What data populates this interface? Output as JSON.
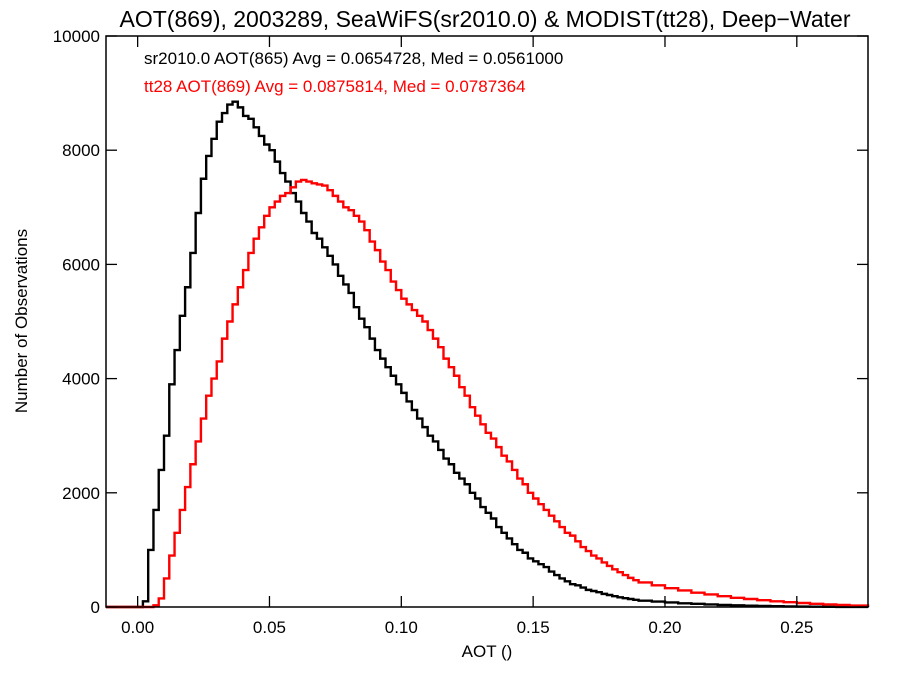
{
  "chart_data": {
    "type": "histogram",
    "title": "AOT(869), 2003289, SeaWiFS(sr2010.0) & MODIST(tt28), Deep−Water",
    "xlabel": "AOT ()",
    "ylabel": "Number of Observations",
    "xlim": [
      -0.012,
      0.277
    ],
    "ylim": [
      0,
      10000
    ],
    "x_ticks": [
      0.0,
      0.05,
      0.1,
      0.15,
      0.2,
      0.25
    ],
    "x_tick_labels": [
      "0.00",
      "0.05",
      "0.10",
      "0.15",
      "0.20",
      "0.25"
    ],
    "y_ticks": [
      0,
      2000,
      4000,
      6000,
      8000,
      10000
    ],
    "y_tick_labels": [
      "0",
      "2000",
      "4000",
      "6000",
      "8000",
      "10000"
    ],
    "grid": false,
    "series": [
      {
        "name": "sr2010.0 AOT(865)",
        "color": "#000000",
        "annotation": "sr2010.0 AOT(865) Avg = 0.0654728, Med = 0.0561000",
        "points": [
          [
            -0.012,
            0
          ],
          [
            0.0,
            0
          ],
          [
            0.002,
            100
          ],
          [
            0.004,
            1000
          ],
          [
            0.006,
            1700
          ],
          [
            0.008,
            2400
          ],
          [
            0.01,
            3000
          ],
          [
            0.012,
            3900
          ],
          [
            0.014,
            4500
          ],
          [
            0.016,
            5100
          ],
          [
            0.018,
            5600
          ],
          [
            0.02,
            6200
          ],
          [
            0.022,
            6900
          ],
          [
            0.024,
            7500
          ],
          [
            0.026,
            7900
          ],
          [
            0.028,
            8200
          ],
          [
            0.03,
            8500
          ],
          [
            0.032,
            8650
          ],
          [
            0.034,
            8800
          ],
          [
            0.036,
            8850
          ],
          [
            0.038,
            8750
          ],
          [
            0.04,
            8600
          ],
          [
            0.042,
            8550
          ],
          [
            0.044,
            8400
          ],
          [
            0.046,
            8250
          ],
          [
            0.048,
            8100
          ],
          [
            0.05,
            8000
          ],
          [
            0.052,
            7800
          ],
          [
            0.054,
            7600
          ],
          [
            0.056,
            7450
          ],
          [
            0.058,
            7250
          ],
          [
            0.06,
            7100
          ],
          [
            0.062,
            6900
          ],
          [
            0.064,
            6750
          ],
          [
            0.066,
            6550
          ],
          [
            0.068,
            6450
          ],
          [
            0.07,
            6300
          ],
          [
            0.072,
            6150
          ],
          [
            0.074,
            6000
          ],
          [
            0.076,
            5800
          ],
          [
            0.078,
            5650
          ],
          [
            0.08,
            5500
          ],
          [
            0.082,
            5250
          ],
          [
            0.084,
            5050
          ],
          [
            0.086,
            4900
          ],
          [
            0.088,
            4700
          ],
          [
            0.09,
            4500
          ],
          [
            0.092,
            4350
          ],
          [
            0.094,
            4200
          ],
          [
            0.096,
            4050
          ],
          [
            0.098,
            3900
          ],
          [
            0.1,
            3750
          ],
          [
            0.102,
            3600
          ],
          [
            0.104,
            3450
          ],
          [
            0.106,
            3300
          ],
          [
            0.108,
            3150
          ],
          [
            0.11,
            3000
          ],
          [
            0.112,
            2900
          ],
          [
            0.114,
            2750
          ],
          [
            0.116,
            2600
          ],
          [
            0.118,
            2500
          ],
          [
            0.12,
            2350
          ],
          [
            0.122,
            2250
          ],
          [
            0.124,
            2150
          ],
          [
            0.126,
            2000
          ],
          [
            0.128,
            1900
          ],
          [
            0.13,
            1750
          ],
          [
            0.132,
            1650
          ],
          [
            0.134,
            1550
          ],
          [
            0.136,
            1400
          ],
          [
            0.138,
            1300
          ],
          [
            0.14,
            1200
          ],
          [
            0.142,
            1100
          ],
          [
            0.144,
            1000
          ],
          [
            0.146,
            950
          ],
          [
            0.148,
            850
          ],
          [
            0.15,
            800
          ],
          [
            0.152,
            750
          ],
          [
            0.154,
            700
          ],
          [
            0.156,
            620
          ],
          [
            0.158,
            560
          ],
          [
            0.16,
            500
          ],
          [
            0.162,
            450
          ],
          [
            0.164,
            400
          ],
          [
            0.166,
            380
          ],
          [
            0.168,
            340
          ],
          [
            0.17,
            300
          ],
          [
            0.172,
            280
          ],
          [
            0.174,
            260
          ],
          [
            0.176,
            230
          ],
          [
            0.178,
            210
          ],
          [
            0.18,
            190
          ],
          [
            0.182,
            170
          ],
          [
            0.184,
            155
          ],
          [
            0.186,
            140
          ],
          [
            0.188,
            125
          ],
          [
            0.19,
            110
          ],
          [
            0.195,
            95
          ],
          [
            0.2,
            80
          ],
          [
            0.205,
            65
          ],
          [
            0.21,
            55
          ],
          [
            0.215,
            45
          ],
          [
            0.22,
            35
          ],
          [
            0.225,
            30
          ],
          [
            0.23,
            22
          ],
          [
            0.235,
            18
          ],
          [
            0.24,
            14
          ],
          [
            0.245,
            10
          ],
          [
            0.25,
            8
          ],
          [
            0.255,
            5
          ],
          [
            0.26,
            4
          ],
          [
            0.265,
            2
          ],
          [
            0.27,
            1
          ],
          [
            0.277,
            0
          ]
        ]
      },
      {
        "name": "tt28 AOT(869)",
        "color": "#ff0000",
        "annotation": "tt28 AOT(869) Avg = 0.0875814, Med = 0.0787364",
        "points": [
          [
            -0.012,
            0
          ],
          [
            0.004,
            0
          ],
          [
            0.006,
            30
          ],
          [
            0.008,
            150
          ],
          [
            0.01,
            500
          ],
          [
            0.012,
            900
          ],
          [
            0.014,
            1300
          ],
          [
            0.016,
            1700
          ],
          [
            0.018,
            2100
          ],
          [
            0.02,
            2500
          ],
          [
            0.022,
            2900
          ],
          [
            0.024,
            3300
          ],
          [
            0.026,
            3700
          ],
          [
            0.028,
            4000
          ],
          [
            0.03,
            4300
          ],
          [
            0.032,
            4700
          ],
          [
            0.034,
            5000
          ],
          [
            0.036,
            5300
          ],
          [
            0.038,
            5600
          ],
          [
            0.04,
            5900
          ],
          [
            0.042,
            6200
          ],
          [
            0.044,
            6450
          ],
          [
            0.046,
            6650
          ],
          [
            0.048,
            6850
          ],
          [
            0.05,
            7000
          ],
          [
            0.052,
            7100
          ],
          [
            0.054,
            7200
          ],
          [
            0.056,
            7250
          ],
          [
            0.058,
            7350
          ],
          [
            0.06,
            7450
          ],
          [
            0.062,
            7480
          ],
          [
            0.064,
            7450
          ],
          [
            0.066,
            7420
          ],
          [
            0.068,
            7400
          ],
          [
            0.07,
            7380
          ],
          [
            0.072,
            7300
          ],
          [
            0.074,
            7200
          ],
          [
            0.076,
            7100
          ],
          [
            0.078,
            7000
          ],
          [
            0.08,
            6950
          ],
          [
            0.082,
            6850
          ],
          [
            0.084,
            6750
          ],
          [
            0.086,
            6600
          ],
          [
            0.088,
            6400
          ],
          [
            0.09,
            6250
          ],
          [
            0.092,
            6050
          ],
          [
            0.094,
            5900
          ],
          [
            0.096,
            5700
          ],
          [
            0.098,
            5550
          ],
          [
            0.1,
            5400
          ],
          [
            0.102,
            5300
          ],
          [
            0.104,
            5200
          ],
          [
            0.106,
            5100
          ],
          [
            0.108,
            5000
          ],
          [
            0.11,
            4850
          ],
          [
            0.112,
            4700
          ],
          [
            0.114,
            4550
          ],
          [
            0.116,
            4350
          ],
          [
            0.118,
            4200
          ],
          [
            0.12,
            4050
          ],
          [
            0.122,
            3850
          ],
          [
            0.124,
            3700
          ],
          [
            0.126,
            3500
          ],
          [
            0.128,
            3350
          ],
          [
            0.13,
            3200
          ],
          [
            0.132,
            3050
          ],
          [
            0.134,
            2950
          ],
          [
            0.136,
            2800
          ],
          [
            0.138,
            2650
          ],
          [
            0.14,
            2550
          ],
          [
            0.142,
            2400
          ],
          [
            0.144,
            2250
          ],
          [
            0.146,
            2150
          ],
          [
            0.148,
            2000
          ],
          [
            0.15,
            1900
          ],
          [
            0.152,
            1800
          ],
          [
            0.154,
            1700
          ],
          [
            0.156,
            1600
          ],
          [
            0.158,
            1500
          ],
          [
            0.16,
            1400
          ],
          [
            0.162,
            1300
          ],
          [
            0.164,
            1250
          ],
          [
            0.166,
            1150
          ],
          [
            0.168,
            1050
          ],
          [
            0.17,
            980
          ],
          [
            0.172,
            900
          ],
          [
            0.174,
            850
          ],
          [
            0.176,
            780
          ],
          [
            0.178,
            720
          ],
          [
            0.18,
            660
          ],
          [
            0.182,
            610
          ],
          [
            0.184,
            560
          ],
          [
            0.186,
            510
          ],
          [
            0.188,
            470
          ],
          [
            0.19,
            430
          ],
          [
            0.195,
            380
          ],
          [
            0.2,
            330
          ],
          [
            0.205,
            290
          ],
          [
            0.21,
            250
          ],
          [
            0.215,
            220
          ],
          [
            0.22,
            190
          ],
          [
            0.225,
            160
          ],
          [
            0.23,
            140
          ],
          [
            0.235,
            120
          ],
          [
            0.24,
            100
          ],
          [
            0.245,
            85
          ],
          [
            0.25,
            70
          ],
          [
            0.255,
            55
          ],
          [
            0.26,
            45
          ],
          [
            0.265,
            35
          ],
          [
            0.27,
            25
          ],
          [
            0.277,
            20
          ]
        ]
      }
    ]
  }
}
